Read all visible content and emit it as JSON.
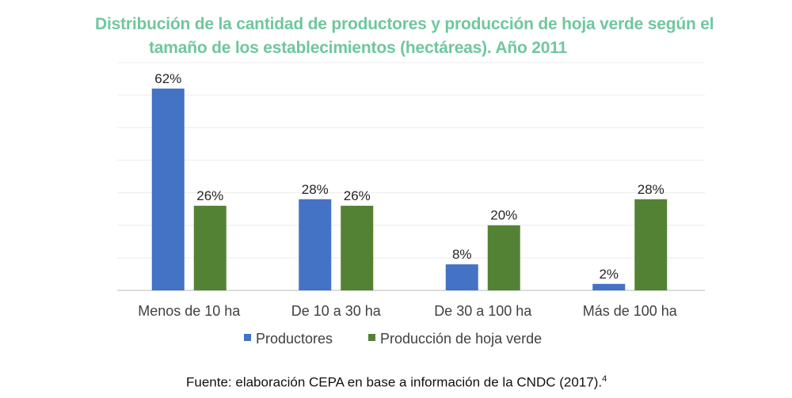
{
  "chart_data": {
    "type": "bar",
    "title": "Distribución de la cantidad de productores y producción de hoja verde según el tamaño de los establecimientos (hectáreas). Año 2011",
    "title_lines": [
      "Distribución de la cantidad de productores y producción de hoja verde según el",
      "tamaño de los establecimientos (hectáreas). Año 2011"
    ],
    "categories": [
      "Menos de 10 ha",
      "De 10 a 30 ha",
      "De 30 a 100 ha",
      "Más de 100 ha"
    ],
    "series": [
      {
        "name": "Productores",
        "values": [
          62,
          28,
          8,
          2
        ],
        "labels": [
          "62%",
          "28%",
          "8%",
          "2%"
        ],
        "color": "#4472c4"
      },
      {
        "name": "Producción de hoja verde",
        "values": [
          26,
          26,
          20,
          28
        ],
        "labels": [
          "26%",
          "26%",
          "20%",
          "28%"
        ],
        "color": "#548235"
      }
    ],
    "xlabel": "",
    "ylabel": "",
    "ylim": [
      0,
      70
    ],
    "grid": true,
    "grid_step": 10,
    "legend_position": "bottom"
  },
  "source": {
    "text": "Fuente: elaboración CEPA en base a información de la CNDC (2017).",
    "footnote": "4"
  }
}
